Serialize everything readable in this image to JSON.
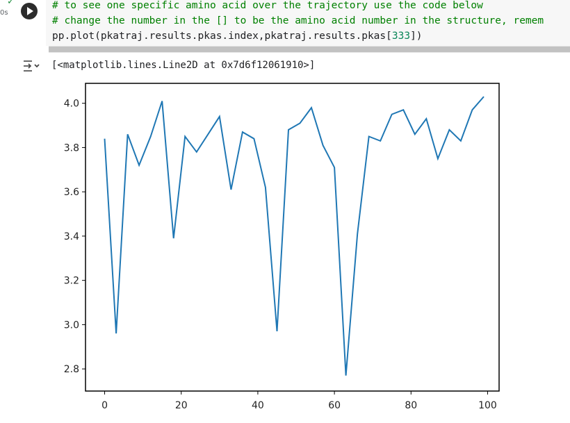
{
  "cell": {
    "exec_time": "0s",
    "code_lines": [
      "# to see one specific amino acid over the trajectory use the code below",
      "# change the number in the [] to be the amino acid number in the structure, remem"
    ],
    "code_call_prefix": "pp.plot(pkatraj.results.pkas.index,pkatraj.results.pkas[",
    "code_call_index": "333",
    "code_call_suffix": "])",
    "output_text": "[<matplotlib.lines.Line2D at 0x7d6f12061910>]"
  },
  "colors": {
    "line": "#1f77b4",
    "comment": "#008000",
    "number": "#098658"
  },
  "chart_data": {
    "type": "line",
    "xlim": [
      -5,
      103
    ],
    "ylim": [
      2.7,
      4.09
    ],
    "xticks": [
      0,
      20,
      40,
      60,
      80,
      100
    ],
    "yticks": [
      2.8,
      3.0,
      3.2,
      3.4,
      3.6,
      3.8,
      4.0
    ],
    "ytick_labels": [
      "2.8",
      "3.0",
      "3.2",
      "3.4",
      "3.6",
      "3.8",
      "4.0"
    ],
    "x": [
      0,
      3,
      6,
      9,
      12,
      15,
      18,
      21,
      24,
      27,
      30,
      33,
      36,
      39,
      42,
      45,
      48,
      51,
      54,
      57,
      60,
      63,
      66,
      69,
      72,
      75,
      78,
      81,
      84,
      87,
      90,
      93,
      96,
      99
    ],
    "y": [
      3.84,
      2.96,
      3.86,
      3.72,
      3.85,
      4.01,
      3.39,
      3.85,
      3.78,
      3.86,
      3.94,
      3.61,
      3.87,
      3.84,
      3.62,
      2.97,
      3.88,
      3.91,
      3.98,
      3.81,
      3.71,
      2.77,
      3.41,
      3.85,
      3.83,
      3.95,
      3.97,
      3.86,
      3.93,
      3.75,
      3.88,
      3.83,
      3.97,
      4.03
    ]
  }
}
